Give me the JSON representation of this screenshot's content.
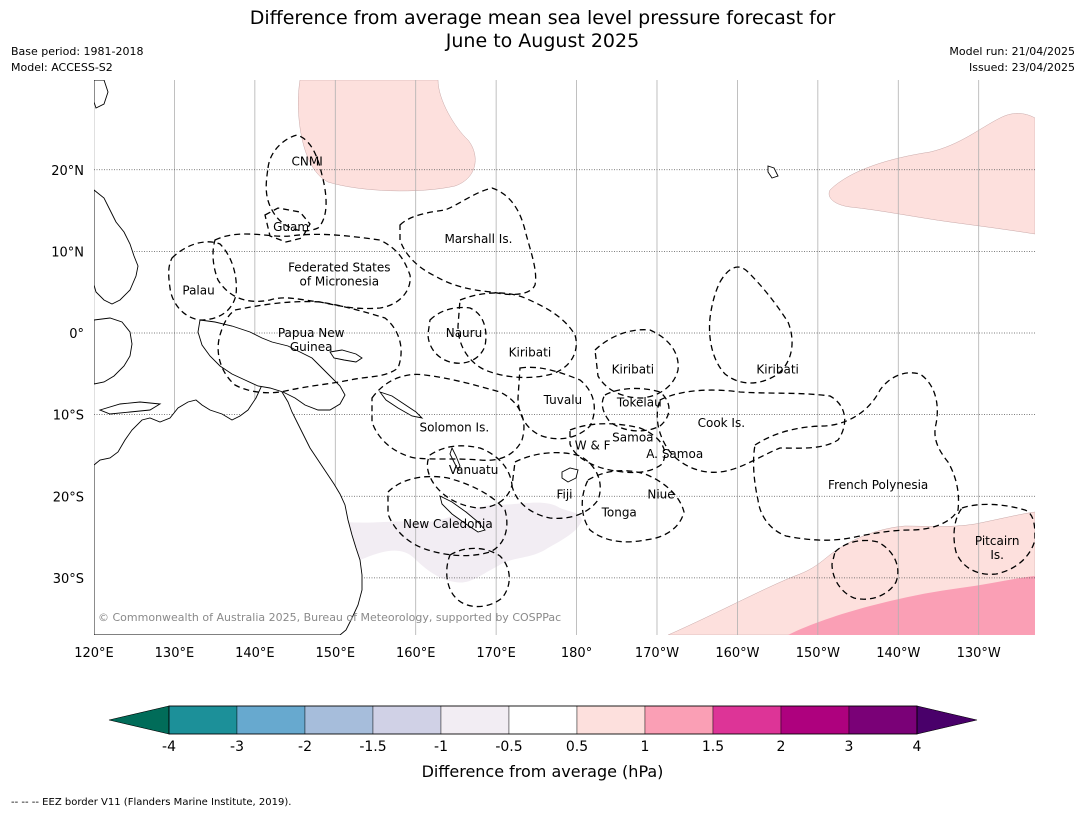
{
  "title": {
    "line1": "Difference from average mean sea level pressure forecast for",
    "line2": "June to August 2025"
  },
  "meta_left": {
    "base_period": "Base period: 1981-2018",
    "model": "Model: ACCESS-S2"
  },
  "meta_right": {
    "model_run": "Model run: 21/04/2025",
    "issued": "Issued: 23/04/2025"
  },
  "map": {
    "lon_range": [
      120,
      237
    ],
    "lat_range": [
      -37,
      31
    ],
    "lon_ticks": [
      {
        "lon": 120,
        "label": "120°E"
      },
      {
        "lon": 130,
        "label": "130°E"
      },
      {
        "lon": 140,
        "label": "140°E"
      },
      {
        "lon": 150,
        "label": "150°E"
      },
      {
        "lon": 160,
        "label": "160°E"
      },
      {
        "lon": 170,
        "label": "170°E"
      },
      {
        "lon": 180,
        "label": "180°"
      },
      {
        "lon": 190,
        "label": "170°W"
      },
      {
        "lon": 200,
        "label": "160°W"
      },
      {
        "lon": 210,
        "label": "150°W"
      },
      {
        "lon": 220,
        "label": "140°W"
      },
      {
        "lon": 230,
        "label": "130°W"
      }
    ],
    "lat_ticks": [
      {
        "lat": 20,
        "label": "20°N"
      },
      {
        "lat": 10,
        "label": "10°N"
      },
      {
        "lat": 0,
        "label": "0°"
      },
      {
        "lat": -10,
        "label": "10°S"
      },
      {
        "lat": -20,
        "label": "20°S"
      },
      {
        "lat": -30,
        "label": "30°S"
      }
    ],
    "copyright": "© Commonwealth of Australia 2025, Bureau of Meteorology, supported by COSPPac",
    "colors": {
      "land_edge": "#000000",
      "eez_border": "#000000",
      "grid": "#b0b0b0",
      "pos_0_5_1": "#fde0dd",
      "pos_1_1_5": "#fa9fb5",
      "neg_0_5_1": "#f2edf3"
    },
    "labels": [
      {
        "text": "CNMI",
        "lon": 146.5,
        "lat": 21
      },
      {
        "text": "Guam",
        "lon": 144.5,
        "lat": 13
      },
      {
        "text": "Marshall Is.",
        "lon": 167.8,
        "lat": 11.5
      },
      {
        "text": "Federated States",
        "lon": 150.5,
        "lat": 8
      },
      {
        "text": "of Micronesia",
        "lon": 150.5,
        "lat": 6.3
      },
      {
        "text": "Palau",
        "lon": 133,
        "lat": 5.2
      },
      {
        "text": "Papua New",
        "lon": 147,
        "lat": 0
      },
      {
        "text": "Guinea",
        "lon": 147,
        "lat": -1.7
      },
      {
        "text": "Nauru",
        "lon": 166,
        "lat": 0
      },
      {
        "text": "Kiribati",
        "lon": 174.2,
        "lat": -2.4
      },
      {
        "text": "Kiribati",
        "lon": 187,
        "lat": -4.5
      },
      {
        "text": "Kiribati",
        "lon": 205,
        "lat": -4.5
      },
      {
        "text": "Tuvalu",
        "lon": 178.3,
        "lat": -8.2
      },
      {
        "text": "Tokelau",
        "lon": 187.8,
        "lat": -8.5
      },
      {
        "text": "Solomon Is.",
        "lon": 164.8,
        "lat": -11.6
      },
      {
        "text": "Cook Is.",
        "lon": 198,
        "lat": -11
      },
      {
        "text": "Samoa",
        "lon": 187,
        "lat": -12.8
      },
      {
        "text": "W & F",
        "lon": 182,
        "lat": -13.8
      },
      {
        "text": "A. Samoa",
        "lon": 192.2,
        "lat": -14.8
      },
      {
        "text": "Vanuatu",
        "lon": 167.2,
        "lat": -16.8
      },
      {
        "text": "French Polynesia",
        "lon": 217.5,
        "lat": -18.6
      },
      {
        "text": "Fiji",
        "lon": 178.5,
        "lat": -19.8
      },
      {
        "text": "Niue",
        "lon": 190.5,
        "lat": -19.8
      },
      {
        "text": "Tonga",
        "lon": 185.3,
        "lat": -22
      },
      {
        "text": "New Caledonia",
        "lon": 164,
        "lat": -23.4
      },
      {
        "text": "Pitcairn",
        "lon": 232.3,
        "lat": -25.5
      },
      {
        "text": "Is.",
        "lon": 232.3,
        "lat": -27.2
      }
    ]
  },
  "colorbar": {
    "label": "Difference from average (hPa)",
    "tick_labels": [
      "-4",
      "-3",
      "-2",
      "-1.5",
      "-1",
      "-0.5",
      "0.5",
      "1",
      "1.5",
      "2",
      "3",
      "4"
    ],
    "colors": [
      "#016c59",
      "#1c9099",
      "#67a9cf",
      "#a6bddb",
      "#d0d1e6",
      "#f2edf3",
      "#ffffff",
      "#fde0dd",
      "#fa9fb5",
      "#dd3497",
      "#ae017e",
      "#7a0177",
      "#49006a"
    ]
  },
  "footnote": "--  --  -- EEZ border V11 (Flanders Marine Institute, 2019)."
}
